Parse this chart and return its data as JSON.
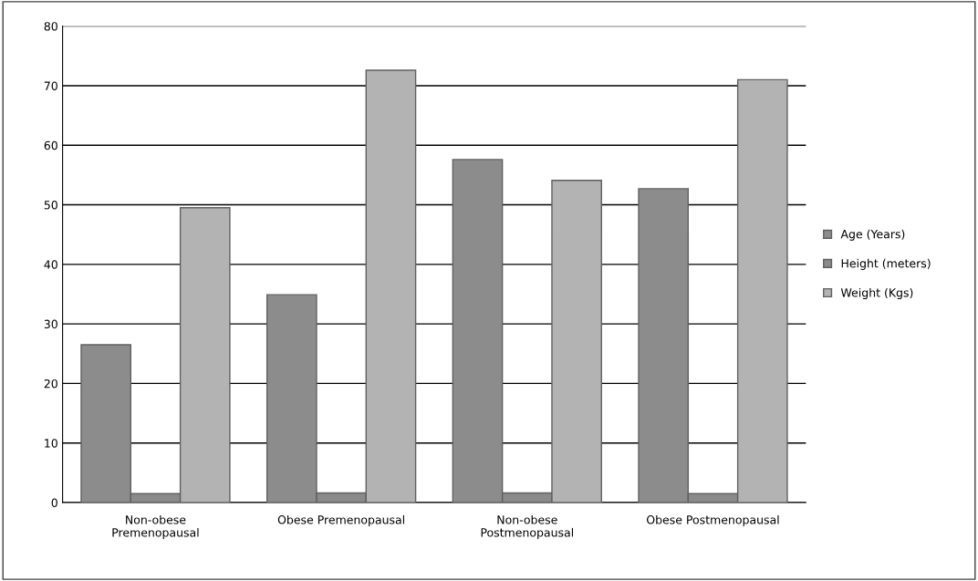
{
  "chart_data": {
    "type": "bar",
    "categories": [
      "Non-obese\nPremenopausal",
      "Obese Premenopausal",
      "Non-obese\nPostmenopausal",
      "Obese Postmenopausal"
    ],
    "series": [
      {
        "name": "Age (Years)",
        "color": "#8c8c8c",
        "values": [
          26.5,
          34.9,
          57.6,
          52.7
        ]
      },
      {
        "name": "Height (meters)",
        "color": "#8a8a8a",
        "values": [
          1.5,
          1.6,
          1.6,
          1.5
        ]
      },
      {
        "name": "Weight (Kgs)",
        "color": "#b3b3b3",
        "values": [
          49.5,
          72.6,
          54.1,
          71.0
        ]
      }
    ],
    "ylim": [
      0,
      80
    ],
    "yticks": [
      0,
      10,
      20,
      30,
      40,
      50,
      60,
      70,
      80
    ],
    "grid": "y",
    "legend": "right"
  }
}
